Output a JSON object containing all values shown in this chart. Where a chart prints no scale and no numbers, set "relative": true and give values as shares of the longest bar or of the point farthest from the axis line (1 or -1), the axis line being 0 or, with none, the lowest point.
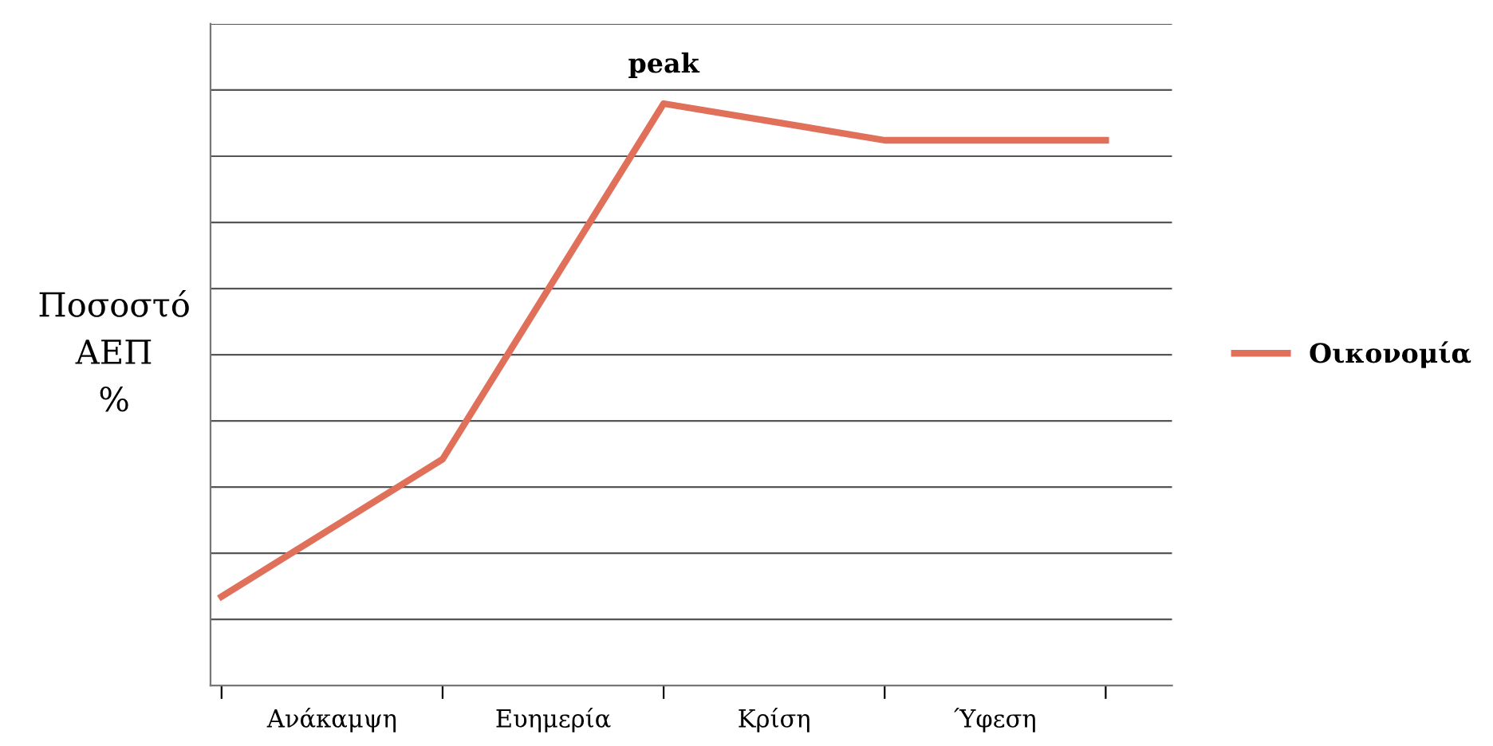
{
  "chart_data": {
    "type": "line",
    "relative": true,
    "categories": [
      null,
      null,
      null,
      null,
      null
    ],
    "ylabel": "Ποσοστό\nΑΕΠ\n%",
    "series": [
      {
        "name": "Οικονομία",
        "color": "#e0705a",
        "values": [
          0.153,
          0.389,
          1,
          0.937,
          0.937
        ]
      }
    ],
    "annotations": [
      "peak",
      "Ανάκαμψη",
      "Ευημερία",
      "Κρίση",
      "Ύφεση"
    ],
    "grid": "y",
    "legend": "right",
    "marker": "none",
    "line_style": "solid"
  }
}
